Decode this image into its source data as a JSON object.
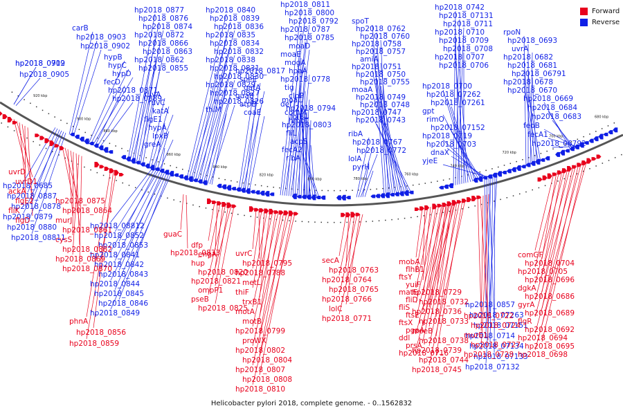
{
  "caption": "Helicobacter pylori 2018, complete genome. - 0..1562832",
  "legend": {
    "forward": {
      "label": "Forward",
      "color": "#e8001c"
    },
    "reverse": {
      "label": "Reverse",
      "color": "#0f1fe6"
    }
  },
  "colors": {
    "forward": "#e8001c",
    "reverse": "#0f1fe6",
    "backbone": "#555555"
  },
  "scale_ticks": [
    "920 kbp",
    "900 kbp",
    "880 kbp",
    "860 kbp",
    "840 kbp",
    "820 kbp",
    "800 kbp",
    "780 kbp",
    "760 kbp",
    "740 kbp",
    "720 kbp",
    "700 kbp",
    "680 kbp"
  ],
  "reverse_labels": [
    "hp2018_0909",
    "hp2018_0905",
    "carB",
    "hp2018_0903",
    "hp2018_0902",
    "hypB",
    "hypC",
    "hypD",
    "fecD",
    "hp2018_0871",
    "hp2018_0889",
    "hp2018_0877",
    "hp2018_0876",
    "hp2018_0874",
    "hp2018_0872",
    "hp2018_0866",
    "hp2018_0863",
    "hp2018_0862",
    "hp2018_0855",
    "ruvA",
    "ruvC",
    "katA",
    "flgE1",
    "hypA",
    "lpxB",
    "greA",
    "hp2018_0840",
    "hp2018_0839",
    "hp2018_0836",
    "hp2018_0835",
    "hp2018_0834",
    "hp2018_0832",
    "hp2018_0838",
    "hp2018_0831",
    "hp2018_0830",
    "hp2018_0829",
    "hp2018_0827",
    "hp2018_0826",
    "thiM",
    "hp2018_0817",
    "speE",
    "gatA",
    "guaB",
    "atpB",
    "coaE",
    "hp2018_0811",
    "hp2018_0800",
    "hp2018_0792",
    "hp2018_0787",
    "hp2018_0785",
    "moaD",
    "moaE",
    "mogA",
    "hpaA",
    "hp2018_0778",
    "tig",
    "clpP",
    "def",
    "comM",
    "hmcT",
    "moaC",
    "hp2018_0794",
    "folB1",
    "hp2018_0803",
    "fliL",
    "acpS",
    "fecA2",
    "ribA",
    "ribA",
    "hp2018_0767",
    "hp2018_0772",
    "lolA",
    "pyrH",
    "spoT",
    "hp2018_0762",
    "hp2018_0760",
    "hp2018_0758",
    "hp2018_0757",
    "amiA",
    "hp2018_0751",
    "hp2018_0750",
    "hp2018_0755",
    "moaA",
    "hp2018_0749",
    "hp2018_0748",
    "hp2018_0747",
    "hp2018_0743",
    "hp2018_0742",
    "hp2018_07131",
    "hp2018_0711",
    "hp2018_0710",
    "hp2018_0709",
    "hp2018_0708",
    "hp2018_0707",
    "hp2018_0706",
    "hp2018_0700",
    "hp2018_07262",
    "hp2018_07261",
    "gpt",
    "rimO",
    "hp2018_07152",
    "hp2018_0719",
    "hp2018_0703",
    "dnaX",
    "yjeE",
    "rpoN",
    "hp2018_0693",
    "uvrA",
    "hp2018_0682",
    "hp2018_0681",
    "hp2018_06791",
    "hp2018_0678",
    "hp2018_0670",
    "hp2018_0669",
    "hp2018_0684",
    "hp2018_0683",
    "feoB",
    "fecA1",
    "hp2018_06792",
    "hp2018_0685",
    "hp2018_0887",
    "hp2018_0878",
    "hp2018_0879",
    "hp2018_0880",
    "hp2018_08811",
    "hp2018_08812",
    "hp2018_0852",
    "hp2018_0853",
    "hp2018_0841",
    "hp2018_0842",
    "hp2018_0843",
    "hp2018_0844",
    "hp2018_0845",
    "hp2018_0846",
    "hp2018_0849",
    "hp2018_0857",
    "hp2018_07263",
    "hp2018_07151",
    "hp2018_0714",
    "hp2018_07134",
    "hp2018_07133",
    "hp2018_07132",
    "hp2018_0712"
  ],
  "forward_labels": [
    "uvrD",
    "uvrD1",
    "ackA",
    "flgE2",
    "fliK",
    "flgD",
    "hp2018_0875",
    "hp2018_0864",
    "murJ",
    "hp2018_0861",
    "cysS",
    "hp2018_0882",
    "hp2018_0869",
    "hp2018_0870",
    "phnA",
    "hp2018_0856",
    "hp2018_0859",
    "guaC",
    "hp2018_0833",
    "dfp",
    "engA",
    "hup",
    "hp2018_0820",
    "hp2018_0821",
    "ompP1",
    "pseB",
    "hp2018_0825",
    "uvrC",
    "hp2018_0795",
    "hp2018_0788",
    "metL",
    "thiF",
    "trxB1",
    "motA",
    "motB",
    "hp2018_0799",
    "proWX",
    "hp2018_0802",
    "hp2018_0804",
    "hp2018_0807",
    "hp2018_0808",
    "hp2018_0810",
    "secA",
    "hp2018_0763",
    "hp2018_0764",
    "hp2018_0765",
    "hp2018_0766",
    "lolC",
    "hp2018_0771",
    "mobA",
    "flhB1",
    "ftsY",
    "yuiF",
    "matE",
    "fliD",
    "fliS",
    "ftsE",
    "ftsX",
    "pgpA",
    "ddl",
    "prsA",
    "hp2018_0716",
    "hp2018_0729",
    "hp2018_0732",
    "hp2018_0736",
    "hp2018_0733",
    "moeB",
    "hp2018_0738",
    "hp2018_0739",
    "hp2018_0744",
    "hp2018_0745",
    "hp2018_0722",
    "hp2018_0724",
    "murE1",
    "hp2018_0727",
    "hp2018_0728",
    "comGF",
    "hp2018_0704",
    "hp2018_0705",
    "hp2018_0696",
    "dgkA",
    "hp2018_0686",
    "gyrA",
    "hp2018_0689",
    "flgR",
    "hp2018_0692",
    "hp2018_0694",
    "hp2018_0695",
    "hp2018_0698"
  ]
}
